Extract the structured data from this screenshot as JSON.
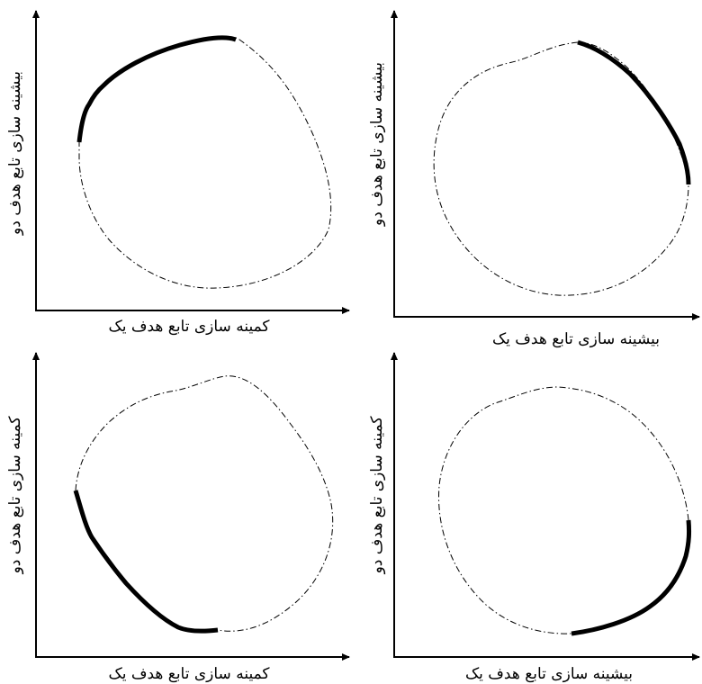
{
  "panels": [
    {
      "id": "top-left",
      "x_axis_label": "کمینه سازی تابع هدف یک",
      "y_axis_label": "بیشینه سازی تابع هدف دو",
      "front_region": "top-left"
    },
    {
      "id": "top-right",
      "x_axis_label": "بیشینه سازی تابع هدف یک",
      "y_axis_label": "بیشینه سازی تابع هدف دو",
      "front_region": "top-right"
    },
    {
      "id": "bottom-left",
      "x_axis_label": "کمینه سازی تابع هدف یک",
      "y_axis_label": "کمینه سازی تابع هدف دو",
      "front_region": "bottom-left"
    },
    {
      "id": "bottom-right",
      "x_axis_label": "بیشینه سازی تابع هدف یک",
      "y_axis_label": "کمینه سازی تابع هدف دو",
      "front_region": "bottom-right"
    }
  ]
}
